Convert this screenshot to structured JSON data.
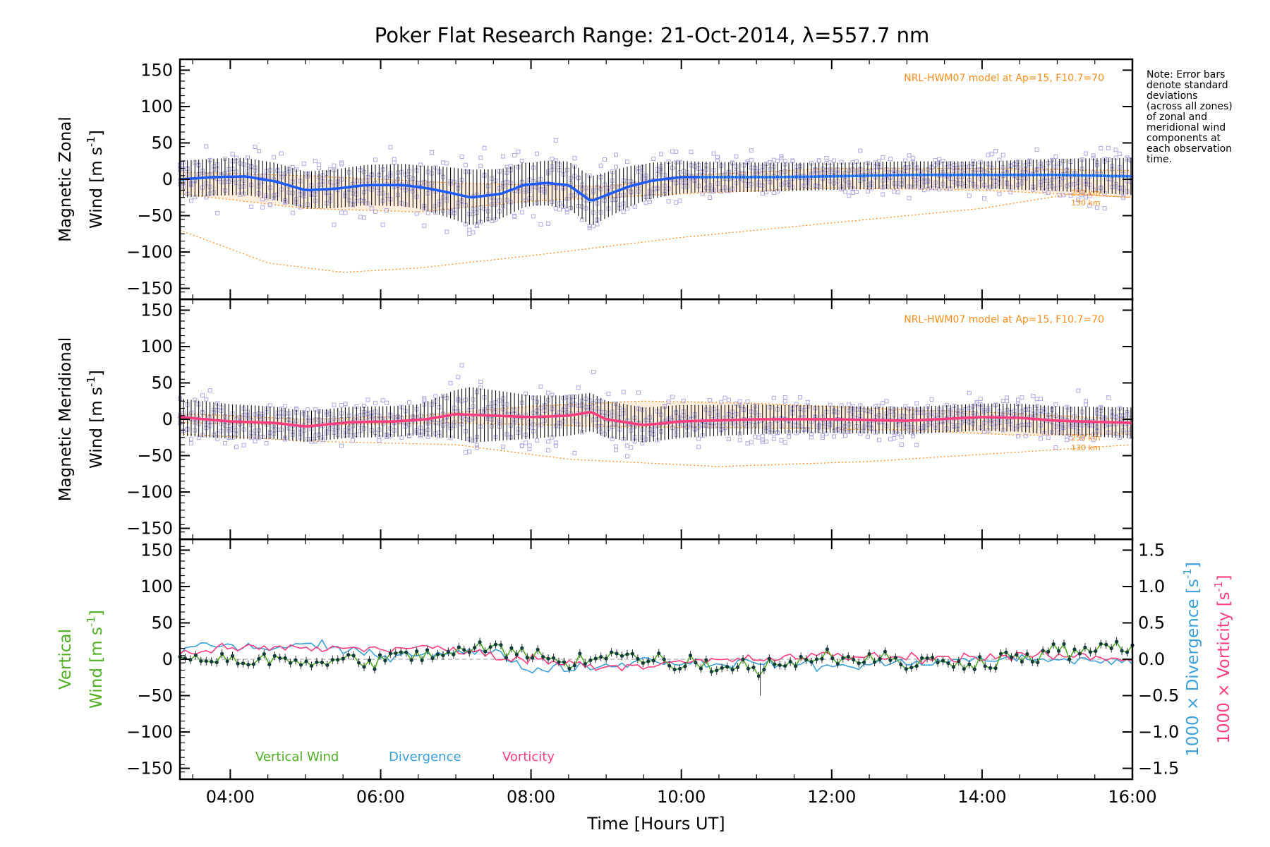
{
  "title": "Poker Flat Research Range: 21-Oct-2014, λ=557.7 nm",
  "note": [
    "Note: Error bars",
    "denote standard",
    "deviations",
    "(across all zones)",
    "of zonal and",
    "meridional wind",
    "components at",
    "each observation",
    "time."
  ],
  "model_label": "NRL-HWM07 model at Ap=15, F10.7=70",
  "alt_labels": [
    "250 km",
    "130 km"
  ],
  "colors": {
    "zonal_mean": "#1f5cff",
    "zonal_mean_late": "#45b0e6",
    "meridional_mean": "#ff3d7f",
    "vertical": "#4caf20",
    "divergence": "#3aa0dc",
    "vorticity": "#ff3d7f",
    "model": "#ff8c1a",
    "scatter": "#b0a7e0",
    "errorbar": "#111111",
    "band": "#ffd9b0"
  },
  "chart_data": [
    {
      "type": "line",
      "panel": "zonal",
      "ylabel_line1": "Magnetic Zonal",
      "ylabel_line2": "Wind [m s",
      "ylabel_exp": "-1",
      "ylabel_close": "]",
      "xlim": [
        3.33,
        16.0
      ],
      "ylim": [
        -165,
        165
      ],
      "yticks": [
        150,
        100,
        50,
        0,
        -50,
        -100,
        -150
      ],
      "ytick_labels": [
        "150",
        "100",
        "50",
        "0",
        "−50",
        "−100",
        "−150"
      ],
      "mean_knots": [
        [
          3.33,
          0
        ],
        [
          3.8,
          3
        ],
        [
          4.2,
          4
        ],
        [
          4.6,
          -3
        ],
        [
          5.0,
          -15
        ],
        [
          5.4,
          -13
        ],
        [
          5.8,
          -8
        ],
        [
          6.3,
          -8
        ],
        [
          6.6,
          -12
        ],
        [
          6.9,
          -18
        ],
        [
          7.2,
          -25
        ],
        [
          7.6,
          -20
        ],
        [
          7.9,
          -8
        ],
        [
          8.2,
          -5
        ],
        [
          8.5,
          -8
        ],
        [
          8.8,
          -30
        ],
        [
          9.0,
          -22
        ],
        [
          9.3,
          -10
        ],
        [
          9.6,
          -2
        ],
        [
          10.0,
          3
        ],
        [
          10.6,
          3
        ],
        [
          11.2,
          3
        ],
        [
          12.0,
          4
        ],
        [
          13.0,
          6
        ],
        [
          14.0,
          6
        ],
        [
          15.0,
          6
        ],
        [
          16.0,
          4
        ]
      ],
      "spread_knots": [
        [
          3.33,
          30
        ],
        [
          5.0,
          30
        ],
        [
          6.5,
          35
        ],
        [
          7.2,
          45
        ],
        [
          8.0,
          35
        ],
        [
          8.8,
          40
        ],
        [
          9.5,
          30
        ],
        [
          10.2,
          25
        ],
        [
          12.0,
          22
        ],
        [
          14.0,
          22
        ],
        [
          16.0,
          30
        ]
      ],
      "model_knots": {
        "upper": [
          [
            3.33,
            10
          ],
          [
            5.0,
            5
          ],
          [
            7.0,
            -5
          ],
          [
            9.0,
            -10
          ],
          [
            10.0,
            5
          ],
          [
            12.0,
            15
          ],
          [
            14.0,
            15
          ],
          [
            16.0,
            12
          ]
        ],
        "lower": [
          [
            3.33,
            -70
          ],
          [
            4.5,
            -115
          ],
          [
            5.5,
            -128
          ],
          [
            6.5,
            -122
          ],
          [
            8.0,
            -105
          ],
          [
            10.0,
            -80
          ],
          [
            12.0,
            -60
          ],
          [
            14.0,
            -40
          ],
          [
            15.2,
            -20
          ],
          [
            16.0,
            -25
          ]
        ],
        "mid": [
          [
            3.33,
            -20
          ],
          [
            5.0,
            -40
          ],
          [
            6.5,
            -45
          ],
          [
            8.0,
            -30
          ],
          [
            10.0,
            -20
          ],
          [
            12.0,
            -12
          ],
          [
            14.0,
            -15
          ],
          [
            16.0,
            -25
          ]
        ]
      }
    },
    {
      "type": "line",
      "panel": "meridional",
      "ylabel_line1": "Magnetic Meridional",
      "ylabel_line2": "Wind [m s",
      "ylabel_exp": "-1",
      "ylabel_close": "]",
      "xlim": [
        3.33,
        16.0
      ],
      "ylim": [
        -165,
        165
      ],
      "yticks": [
        150,
        100,
        50,
        0,
        -50,
        -100,
        -150
      ],
      "ytick_labels": [
        "150",
        "100",
        "50",
        "0",
        "−50",
        "−100",
        "−150"
      ],
      "mean_knots": [
        [
          3.33,
          3
        ],
        [
          4.0,
          -3
        ],
        [
          4.6,
          -5
        ],
        [
          5.0,
          -10
        ],
        [
          5.6,
          -4
        ],
        [
          6.2,
          -3
        ],
        [
          6.6,
          0
        ],
        [
          7.0,
          7
        ],
        [
          7.5,
          5
        ],
        [
          8.0,
          3
        ],
        [
          8.5,
          5
        ],
        [
          8.8,
          10
        ],
        [
          9.0,
          0
        ],
        [
          9.5,
          -8
        ],
        [
          10.0,
          -3
        ],
        [
          11.0,
          0
        ],
        [
          12.0,
          0
        ],
        [
          13.0,
          -2
        ],
        [
          14.0,
          3
        ],
        [
          14.5,
          2
        ],
        [
          15.0,
          -2
        ],
        [
          16.0,
          -5
        ]
      ],
      "spread_knots": [
        [
          3.33,
          30
        ],
        [
          5.0,
          25
        ],
        [
          6.5,
          25
        ],
        [
          7.2,
          45
        ],
        [
          8.0,
          35
        ],
        [
          9.0,
          30
        ],
        [
          10.5,
          25
        ],
        [
          12.0,
          22
        ],
        [
          14.0,
          22
        ],
        [
          16.0,
          25
        ]
      ],
      "model_knots": {
        "upper": [
          [
            3.33,
            8
          ],
          [
            5.0,
            0
          ],
          [
            6.5,
            5
          ],
          [
            8.0,
            18
          ],
          [
            9.5,
            25
          ],
          [
            11.0,
            22
          ],
          [
            12.5,
            15
          ],
          [
            14.0,
            10
          ],
          [
            16.0,
            0
          ]
        ],
        "lower": [
          [
            3.33,
            -20
          ],
          [
            5.0,
            -30
          ],
          [
            7.0,
            -35
          ],
          [
            8.5,
            -55
          ],
          [
            10.5,
            -65
          ],
          [
            12.5,
            -58
          ],
          [
            14.5,
            -45
          ],
          [
            16.0,
            -35
          ]
        ],
        "mid": [
          [
            3.33,
            -5
          ],
          [
            5.0,
            -8
          ],
          [
            7.0,
            -5
          ],
          [
            9.0,
            -10
          ],
          [
            11.0,
            -12
          ],
          [
            13.0,
            -15
          ],
          [
            14.5,
            -22
          ],
          [
            16.0,
            -20
          ]
        ]
      }
    },
    {
      "type": "line",
      "panel": "vertical",
      "ylabel_line1": "Vertical",
      "ylabel_line2": "Wind [m s",
      "ylabel_exp": "-1",
      "ylabel_close": "]",
      "right_label_div": "1000 × Divergence [s",
      "right_label_vor": "1000 × Vorticity [s",
      "right_exp": "-1",
      "right_close": "]",
      "xlim": [
        3.33,
        16.0
      ],
      "ylim": [
        -165,
        165
      ],
      "yticks": [
        150,
        100,
        50,
        0,
        -50,
        -100,
        -150
      ],
      "ytick_labels": [
        "150",
        "100",
        "50",
        "0",
        "−50",
        "−100",
        "−150"
      ],
      "y2lim": [
        -1.65,
        1.65
      ],
      "y2ticks": [
        1.5,
        1.0,
        0.5,
        0.0,
        -0.5,
        -1.0,
        -1.5
      ],
      "y2tick_labels": [
        "1.5",
        "1.0",
        "0.5",
        "0.0",
        "−0.5",
        "−1.0",
        "−1.5"
      ],
      "legend": [
        "Vertical Wind",
        "Divergence",
        "Vorticity"
      ],
      "series": [
        {
          "name": "Vertical Wind",
          "knots": [
            [
              3.33,
              5
            ],
            [
              4.0,
              0
            ],
            [
              5.0,
              -5
            ],
            [
              6.0,
              0
            ],
            [
              7.0,
              10
            ],
            [
              7.5,
              15
            ],
            [
              8.0,
              5
            ],
            [
              8.5,
              -5
            ],
            [
              9.0,
              10
            ],
            [
              9.5,
              0
            ],
            [
              10.0,
              -5
            ],
            [
              11.0,
              -10
            ],
            [
              12.0,
              5
            ],
            [
              12.5,
              0
            ],
            [
              13.0,
              -5
            ],
            [
              14.0,
              -3
            ],
            [
              15.0,
              10
            ],
            [
              16.0,
              15
            ]
          ]
        },
        {
          "name": "Divergence",
          "knots": [
            [
              3.33,
              0.1
            ],
            [
              3.6,
              0.2
            ],
            [
              4.5,
              0.15
            ],
            [
              5.0,
              0.2
            ],
            [
              6.0,
              0.05
            ],
            [
              6.8,
              0.1
            ],
            [
              7.5,
              0.1
            ],
            [
              8.0,
              -0.15
            ],
            [
              8.5,
              -0.1
            ],
            [
              9.0,
              -0.1
            ],
            [
              9.5,
              0.0
            ],
            [
              10.0,
              -0.05
            ],
            [
              11.0,
              -0.05
            ],
            [
              12.0,
              -0.1
            ],
            [
              13.0,
              -0.05
            ],
            [
              14.0,
              0.0
            ],
            [
              15.0,
              0.0
            ],
            [
              16.0,
              -0.05
            ]
          ]
        },
        {
          "name": "Vorticity",
          "knots": [
            [
              3.33,
              0.1
            ],
            [
              4.0,
              0.15
            ],
            [
              5.0,
              0.15
            ],
            [
              6.0,
              0.15
            ],
            [
              6.8,
              0.15
            ],
            [
              7.5,
              0.05
            ],
            [
              8.0,
              0.0
            ],
            [
              9.0,
              -0.1
            ],
            [
              10.0,
              -0.05
            ],
            [
              11.0,
              0.0
            ],
            [
              12.0,
              0.05
            ],
            [
              13.0,
              0.02
            ],
            [
              14.0,
              0.03
            ],
            [
              15.0,
              0.05
            ],
            [
              16.0,
              0.0
            ]
          ]
        }
      ]
    }
  ],
  "xaxis": {
    "ticks": [
      4,
      6,
      8,
      10,
      12,
      14,
      16
    ],
    "tick_labels": [
      "04:00",
      "06:00",
      "08:00",
      "10:00",
      "12:00",
      "14:00",
      "16:00"
    ],
    "label": "Time [Hours UT]"
  }
}
